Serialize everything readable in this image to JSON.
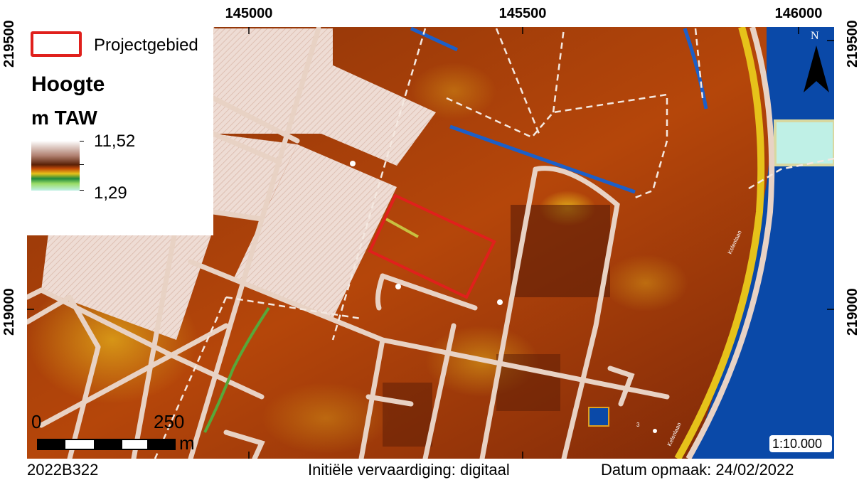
{
  "map": {
    "grid_x_labels": [
      "145000",
      "145500",
      "146000"
    ],
    "grid_y_labels": [
      "219500",
      "219000"
    ],
    "colors": {
      "low": "#bff0e6",
      "mid_green": "#1f8a3c",
      "mid_yellow": "#e6c21a",
      "high_brown": "#7a2a08",
      "peak": "#ffffff",
      "water": "#0a49a8",
      "project_outline": "#e0201c",
      "roads": "#e8d2c4"
    },
    "road_labels": [
      "Kelenlaan",
      "Kelenlaan"
    ],
    "parcel_number": "3"
  },
  "legend": {
    "project_label": "Projectgebied",
    "title": "Hoogte",
    "unit": "m TAW",
    "max_value": "11,52",
    "min_value": "1,29"
  },
  "north_arrow": {
    "label": "N"
  },
  "scalebar": {
    "start": "0",
    "end": "250",
    "unit": "m"
  },
  "scale_ratio": "1:10.000",
  "footer": {
    "project_code": "2022B322",
    "creation": "Initiële vervaardiging: digitaal",
    "date": "Datum opmaak: 24/02/2022"
  }
}
